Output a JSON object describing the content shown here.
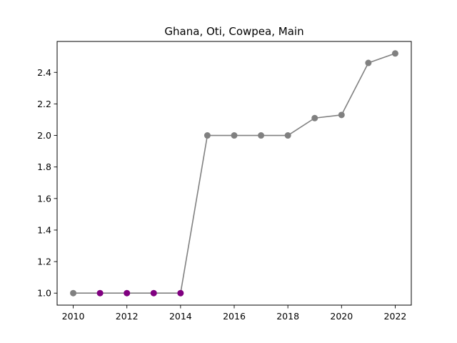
{
  "chart_data": {
    "type": "line",
    "title": "Ghana, Oti, Cowpea, Main",
    "xlabel": "",
    "ylabel": "",
    "x": [
      2010,
      2011,
      2012,
      2013,
      2014,
      2015,
      2016,
      2017,
      2018,
      2019,
      2020,
      2021,
      2022
    ],
    "values": [
      1.0,
      1.0,
      1.0,
      1.0,
      1.0,
      2.0,
      2.0,
      2.0,
      2.0,
      2.11,
      2.13,
      2.46,
      2.52
    ],
    "point_colors": [
      "#808080",
      "#800080",
      "#800080",
      "#800080",
      "#800080",
      "#808080",
      "#808080",
      "#808080",
      "#808080",
      "#808080",
      "#808080",
      "#808080",
      "#808080"
    ],
    "line_color": "#808080",
    "xlim": [
      2009.4,
      2022.6
    ],
    "ylim": [
      0.924,
      2.596
    ],
    "xticks": [
      2010,
      2012,
      2014,
      2016,
      2018,
      2020,
      2022
    ],
    "yticks": [
      1.0,
      1.2,
      1.4,
      1.6,
      1.8,
      2.0,
      2.2,
      2.4
    ],
    "ytick_labels": [
      "1.0",
      "1.2",
      "1.4",
      "1.6",
      "1.8",
      "2.0",
      "2.2",
      "2.4"
    ],
    "grid": false,
    "legend": "none"
  }
}
